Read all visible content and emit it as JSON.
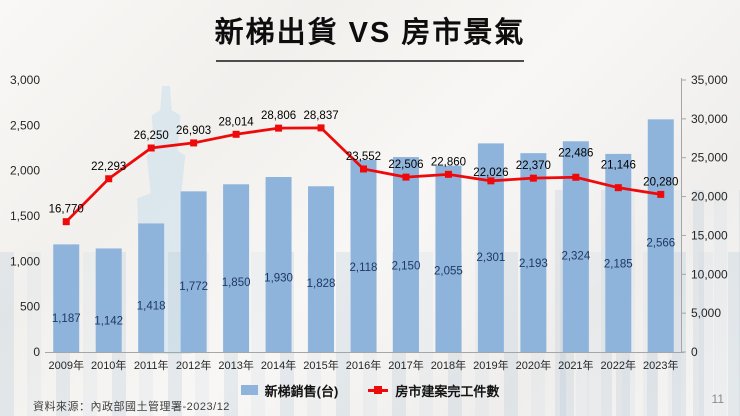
{
  "slide": {
    "title": "新梯出貨 VS 房市景氣",
    "source_note": "資料來源：內政部國土管理署-2023/12",
    "page_number": "11"
  },
  "chart_data": {
    "type": "combo-bar-line",
    "title": "新梯出貨 VS 房市景氣",
    "categories": [
      "2009年",
      "2010年",
      "2011年",
      "2012年",
      "2013年",
      "2014年",
      "2015年",
      "2016年",
      "2017年",
      "2018年",
      "2019年",
      "2020年",
      "2021年",
      "2022年",
      "2023年"
    ],
    "series": [
      {
        "name": "新梯銷售(台)",
        "type": "bar",
        "axis": "left",
        "color": "#8EB4DC",
        "label_color": "#1F3864",
        "values": [
          1187,
          1142,
          1418,
          1772,
          1850,
          1930,
          1828,
          2118,
          2150,
          2055,
          2301,
          2193,
          2324,
          2185,
          2566
        ]
      },
      {
        "name": "房市建案完工件數",
        "type": "line",
        "axis": "right",
        "color": "#EE0A0A",
        "label_color": "#000000",
        "values": [
          16770,
          22293,
          26250,
          26903,
          28014,
          28806,
          28837,
          23552,
          22506,
          22860,
          22026,
          22370,
          22486,
          21146,
          20280
        ]
      }
    ],
    "left_axis": {
      "min": 0,
      "max": 3000,
      "step": 500,
      "ticks": [
        "0",
        "500",
        "1,000",
        "1,500",
        "2,000",
        "2,500",
        "3,000"
      ]
    },
    "right_axis": {
      "min": 0,
      "max": 35000,
      "step": 5000,
      "ticks": [
        "0",
        "5,000",
        "10,000",
        "15,000",
        "20,000",
        "25,000",
        "30,000",
        "35,000"
      ]
    },
    "grid": false,
    "legend_position": "bottom",
    "line_label_dy": [
      0,
      0,
      0,
      0,
      0,
      0,
      0,
      0,
      0,
      0,
      4,
      0,
      -12,
      -10,
      0
    ],
    "axis_color": "#A6A6A6",
    "axis_text_color": "#262626"
  }
}
